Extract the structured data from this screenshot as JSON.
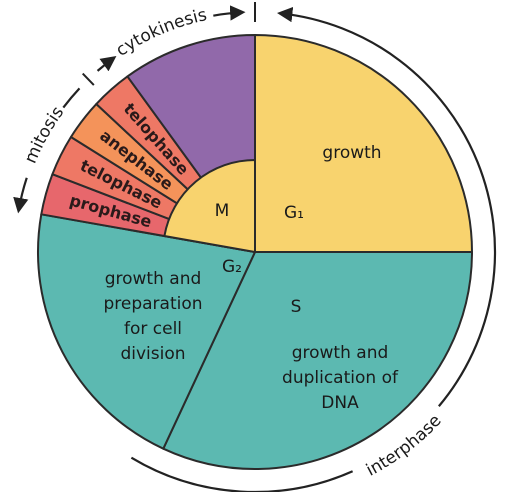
{
  "outer_labels": {
    "cytokinesis": "cytokinesis",
    "mitosis": "mitosis",
    "interphase": "interphase"
  },
  "phases": [
    "prophase",
    "telophase",
    "anephase",
    "telophase"
  ],
  "m_label": "M",
  "g1": {
    "label": "G₁",
    "text": "growth"
  },
  "g2": {
    "label": "G₂",
    "lines": [
      "growth and",
      "preparation",
      "for cell",
      "division"
    ]
  },
  "s": {
    "label": "S",
    "lines": [
      "growth and",
      "duplication of",
      "DNA"
    ]
  }
}
